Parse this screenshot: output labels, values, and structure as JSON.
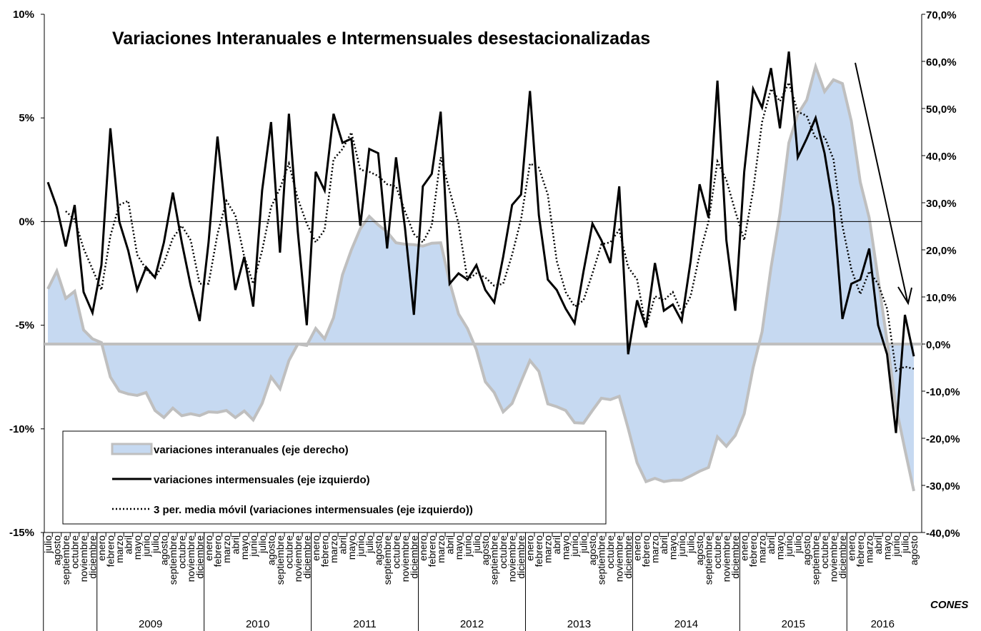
{
  "chart_data": {
    "type": "line",
    "title": "Variaciones Interanuales e Intermensuales desestacionalizadas",
    "credit": "CONES",
    "groups": [
      {
        "label": null,
        "months": [
          "julio",
          "agosto",
          "septiembre",
          "octubre",
          "noviembre",
          "diciembre"
        ]
      },
      {
        "label": "2009",
        "months": [
          "enero",
          "febrero",
          "marzo",
          "abril",
          "mayo",
          "junio",
          "julio",
          "agosto",
          "septiembre",
          "octubre",
          "noviembre",
          "diciembre"
        ]
      },
      {
        "label": "2010",
        "months": [
          "enero",
          "febrero",
          "marzo",
          "abril",
          "mayo",
          "junio",
          "julio",
          "agosto",
          "septiembre",
          "octubre",
          "noviembre",
          "diciembre"
        ]
      },
      {
        "label": "2011",
        "months": [
          "enero",
          "febrero",
          "marzo",
          "abril",
          "mayo",
          "junio",
          "julio",
          "agosto",
          "septiembre",
          "octubre",
          "noviembre",
          "diciembre"
        ]
      },
      {
        "label": "2012",
        "months": [
          "enero",
          "febrero",
          "marzo",
          "abril",
          "mayo",
          "junio",
          "julio",
          "agosto",
          "septiembre",
          "octubre",
          "noviembre",
          "diciembre"
        ]
      },
      {
        "label": "2013",
        "months": [
          "enero",
          "febrero",
          "marzo",
          "abril",
          "mayo",
          "junio",
          "julio",
          "agosto",
          "septiembre",
          "octubre",
          "noviembre",
          "diciembre"
        ]
      },
      {
        "label": "2014",
        "months": [
          "enero",
          "febrero",
          "marzo",
          "abril",
          "mayo",
          "junio",
          "julio",
          "agosto",
          "septiembre",
          "octubre",
          "noviembre",
          "diciembre"
        ]
      },
      {
        "label": "2015",
        "months": [
          "enero",
          "febrero",
          "marzo",
          "abril",
          "mayo",
          "junio",
          "julio",
          "agosto",
          "septiembre",
          "octubre",
          "noviembre",
          "diciembre"
        ]
      },
      {
        "label": "2016",
        "months": [
          "enero",
          "febrero",
          "marzo",
          "abril",
          "mayo",
          "junio",
          "julio",
          "agosto"
        ]
      }
    ],
    "ylim": [
      -15,
      10
    ],
    "yticks": [
      {
        "value": -15,
        "label": "-15%"
      },
      {
        "value": -10,
        "label": "-10%"
      },
      {
        "value": -5,
        "label": "-5%"
      },
      {
        "value": 0,
        "label": "0%"
      },
      {
        "value": 5,
        "label": "5%"
      },
      {
        "value": 10,
        "label": "10%"
      }
    ],
    "y2lim": [
      -40,
      70
    ],
    "y2ticks": [
      {
        "value": -40,
        "label": "-40,0%"
      },
      {
        "value": -30,
        "label": "-30,0%"
      },
      {
        "value": -20,
        "label": "-20,0%"
      },
      {
        "value": -10,
        "label": "-10,0%"
      },
      {
        "value": 0,
        "label": "0,0%"
      },
      {
        "value": 10,
        "label": "10,0%"
      },
      {
        "value": 20,
        "label": "20,0%"
      },
      {
        "value": 30,
        "label": "30,0%"
      },
      {
        "value": 40,
        "label": "40,0%"
      },
      {
        "value": 50,
        "label": "50,0%"
      },
      {
        "value": 60,
        "label": "60,0%"
      },
      {
        "value": 70,
        "label": "70,0%"
      }
    ],
    "series": [
      {
        "name": "variaciones interanuales (eje derecho)",
        "type": "area",
        "axis": "y2",
        "color": "#c6d9f1",
        "edge_color": "#bfbfbf",
        "values": [
          11.7,
          15.5,
          9.7,
          11.2,
          3.0,
          1.1,
          0.3,
          -7.0,
          -10.0,
          -10.6,
          -10.9,
          -10.3,
          -14.1,
          -15.6,
          -13.6,
          -15.2,
          -14.8,
          -15.2,
          -14.4,
          -14.5,
          -14.1,
          -15.6,
          -14.2,
          -16.1,
          -12.6,
          -7.0,
          -9.5,
          -3.5,
          0.0,
          -0.3,
          3.3,
          1.1,
          5.6,
          14.7,
          20.0,
          24.5,
          27.1,
          25.3,
          23.8,
          21.5,
          21.2,
          21.1,
          20.8,
          21.4,
          21.5,
          13.2,
          6.4,
          3.3,
          -1.2,
          -8.0,
          -10.3,
          -14.4,
          -12.6,
          -8.0,
          -3.5,
          -5.8,
          -12.7,
          -13.3,
          -14.1,
          -16.7,
          -16.8,
          -14.1,
          -11.5,
          -11.8,
          -11.1,
          -17.9,
          -25.2,
          -29.2,
          -28.5,
          -29.2,
          -28.9,
          -28.9,
          -28.0,
          -27.0,
          -26.2,
          -19.7,
          -21.7,
          -19.4,
          -14.8,
          -5.0,
          2.6,
          16.2,
          27.6,
          42.7,
          48.8,
          51.8,
          58.9,
          53.6,
          56.1,
          55.3,
          47.3,
          34.4,
          26.8,
          13.9,
          0.6,
          -13.3,
          -22.4,
          -31.2
        ]
      },
      {
        "name": "variaciones intermensuales (eje izquierdo)",
        "type": "line",
        "axis": "y",
        "color": "#000000",
        "dash": "solid",
        "values": [
          1.9,
          0.7,
          -1.2,
          0.8,
          -3.4,
          -4.4,
          -2.1,
          4.5,
          0.0,
          -1.4,
          -3.3,
          -2.2,
          -2.7,
          -1.0,
          1.4,
          -1.0,
          -3.1,
          -4.8,
          -1.0,
          4.1,
          0.0,
          -3.3,
          -1.7,
          -4.1,
          1.5,
          4.8,
          -1.5,
          5.2,
          -0.5,
          -5.0,
          2.4,
          1.5,
          5.2,
          3.8,
          4.0,
          -0.2,
          3.5,
          3.3,
          -1.3,
          3.1,
          -0.3,
          -4.5,
          1.7,
          2.3,
          5.3,
          -3.0,
          -2.5,
          -2.8,
          -2.1,
          -3.3,
          -3.9,
          -1.7,
          0.8,
          1.3,
          6.3,
          0.3,
          -2.8,
          -3.3,
          -4.2,
          -4.9,
          -2.4,
          -0.1,
          -0.9,
          -2.0,
          1.7,
          -6.4,
          -3.8,
          -5.1,
          -2.0,
          -4.3,
          -4.0,
          -4.8,
          -1.9,
          1.8,
          0.2,
          6.8,
          -0.9,
          -4.3,
          2.4,
          6.4,
          5.5,
          7.4,
          4.5,
          8.2,
          3.1,
          4.0,
          5.0,
          3.3,
          0.7,
          -4.7,
          -3.0,
          -2.8,
          -1.3,
          -5.0,
          -6.4,
          -10.2,
          -4.5,
          -6.5
        ]
      },
      {
        "name": "3 per. media móvil (variaciones intermensuales (eje izquierdo))",
        "type": "line",
        "axis": "y",
        "color": "#000000",
        "dash": "dotted",
        "values": [
          null,
          null,
          0.5,
          0.1,
          -1.3,
          -2.3,
          -3.3,
          -0.7,
          0.8,
          1.0,
          -1.6,
          -2.3,
          -2.7,
          -2.0,
          -0.8,
          -0.2,
          -0.9,
          -3.0,
          -3.0,
          -0.6,
          1.0,
          0.3,
          -1.7,
          -3.0,
          -1.4,
          0.7,
          1.6,
          2.8,
          1.1,
          -0.1,
          -1.0,
          -0.4,
          3.0,
          3.5,
          4.3,
          2.5,
          2.4,
          2.2,
          1.8,
          1.7,
          0.5,
          -0.6,
          -1.0,
          -0.2,
          3.1,
          1.5,
          -0.1,
          -2.8,
          -2.5,
          -2.7,
          -3.1,
          -3.0,
          -1.6,
          0.1,
          2.8,
          2.6,
          1.3,
          -1.9,
          -3.4,
          -4.1,
          -3.8,
          -2.5,
          -1.1,
          -1.0,
          -0.4,
          -2.2,
          -2.8,
          -5.1,
          -3.6,
          -3.8,
          -3.4,
          -4.4,
          -3.6,
          -1.6,
          0.0,
          2.9,
          2.0,
          0.5,
          -0.9,
          1.5,
          4.8,
          6.4,
          5.8,
          6.7,
          5.3,
          5.1,
          4.0,
          4.1,
          3.0,
          -0.2,
          -2.3,
          -3.5,
          -2.4,
          -3.0,
          -4.2,
          -7.2,
          -7.0,
          -7.1
        ]
      }
    ]
  }
}
